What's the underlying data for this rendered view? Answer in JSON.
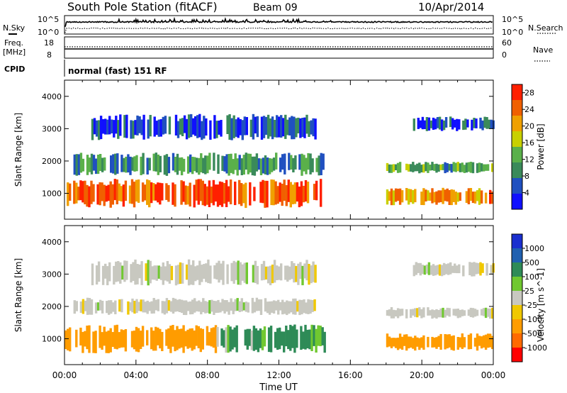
{
  "header": {
    "station": "South Pole Station (fitACF)",
    "beam": "Beam 09",
    "date": "10/Apr/2014"
  },
  "params": {
    "nsky_label": "N.Sky",
    "nsearch_label": "N.Search",
    "noise_tick_top": "10^5",
    "noise_tick_bottom": "10^0",
    "freq_label": "Freq.",
    "freq_unit": "[MHz]",
    "freq_tick_top": "18",
    "freq_tick_bottom": "8",
    "nave_label": "Nave",
    "nave_tick_top": "60",
    "nave_tick_bottom": "0",
    "cpid_label": "CPID",
    "cpid_value": "normal (fast) 151 RF"
  },
  "colors": {
    "nsky_line": "#000000",
    "power_scale": [
      "#1010ff",
      "#2050c0",
      "#3a8a5a",
      "#5ab04a",
      "#c8d000",
      "#f0a000",
      "#f06000",
      "#ff2000"
    ],
    "velocity_scale": [
      "#ff0000",
      "#ff6a00",
      "#ff9c00",
      "#f0c800",
      "#c8c8c0",
      "#70c830",
      "#2e8b57",
      "#2060b0",
      "#1a2fcf"
    ]
  },
  "chart_data": [
    {
      "type": "heatmap",
      "title": "Power",
      "xlabel": "Time UT",
      "ylabel": "Slant Range [km]",
      "x_ticks": [
        "00:00",
        "04:00",
        "08:00",
        "12:00",
        "16:00",
        "20:00",
        "00:00"
      ],
      "y_ticks": [
        1000,
        2000,
        3000,
        4000
      ],
      "ylim": [
        200,
        4500
      ],
      "xlim_hours": [
        0,
        24
      ],
      "colorbar": {
        "label": "Power [dB]",
        "ticks": [
          4,
          8,
          12,
          16,
          20,
          24,
          28
        ],
        "range": [
          0,
          30
        ]
      },
      "echo_regions": [
        {
          "hours": [
            0,
            14.5
          ],
          "range_km": [
            500,
            1500
          ],
          "value": 26
        },
        {
          "hours": [
            0.5,
            14.5
          ],
          "range_km": [
            1500,
            2300
          ],
          "value": 10
        },
        {
          "hours": [
            1.5,
            14.0
          ],
          "range_km": [
            2600,
            3500
          ],
          "value": 6
        },
        {
          "hours": [
            18.0,
            24
          ],
          "range_km": [
            600,
            1200
          ],
          "value": 22
        },
        {
          "hours": [
            18.0,
            24
          ],
          "range_km": [
            1600,
            2000
          ],
          "value": 12
        },
        {
          "hours": [
            19.5,
            24
          ],
          "range_km": [
            2900,
            3400
          ],
          "value": 6
        }
      ]
    },
    {
      "type": "heatmap",
      "title": "Velocity",
      "xlabel": "Time UT",
      "ylabel": "Slant Range [km]",
      "x_ticks": [
        "00:00",
        "04:00",
        "08:00",
        "12:00",
        "16:00",
        "20:00",
        "00:00"
      ],
      "y_ticks": [
        1000,
        2000,
        3000,
        4000
      ],
      "ylim": [
        200,
        4500
      ],
      "xlim_hours": [
        0,
        24
      ],
      "colorbar": {
        "label": "Velocity [m s^-1]",
        "ticks": [
          "1000",
          "500",
          "100",
          "25",
          "-25",
          "-100",
          "-500",
          "-1000"
        ]
      },
      "echo_regions": [
        {
          "hours": [
            0,
            8.5
          ],
          "range_km": [
            500,
            1500
          ],
          "value": -300
        },
        {
          "hours": [
            8.5,
            14.5
          ],
          "range_km": [
            500,
            1500
          ],
          "value": 200
        },
        {
          "hours": [
            0.5,
            14.0
          ],
          "range_km": [
            1700,
            2300
          ],
          "value": 0
        },
        {
          "hours": [
            1.5,
            14.0
          ],
          "range_km": [
            2600,
            3500
          ],
          "value": 0
        },
        {
          "hours": [
            18.0,
            24
          ],
          "range_km": [
            600,
            1200
          ],
          "value": -300
        },
        {
          "hours": [
            18.0,
            24
          ],
          "range_km": [
            1600,
            2000
          ],
          "value": 0
        },
        {
          "hours": [
            19.5,
            24
          ],
          "range_km": [
            2900,
            3400
          ],
          "value": 0
        }
      ]
    }
  ]
}
